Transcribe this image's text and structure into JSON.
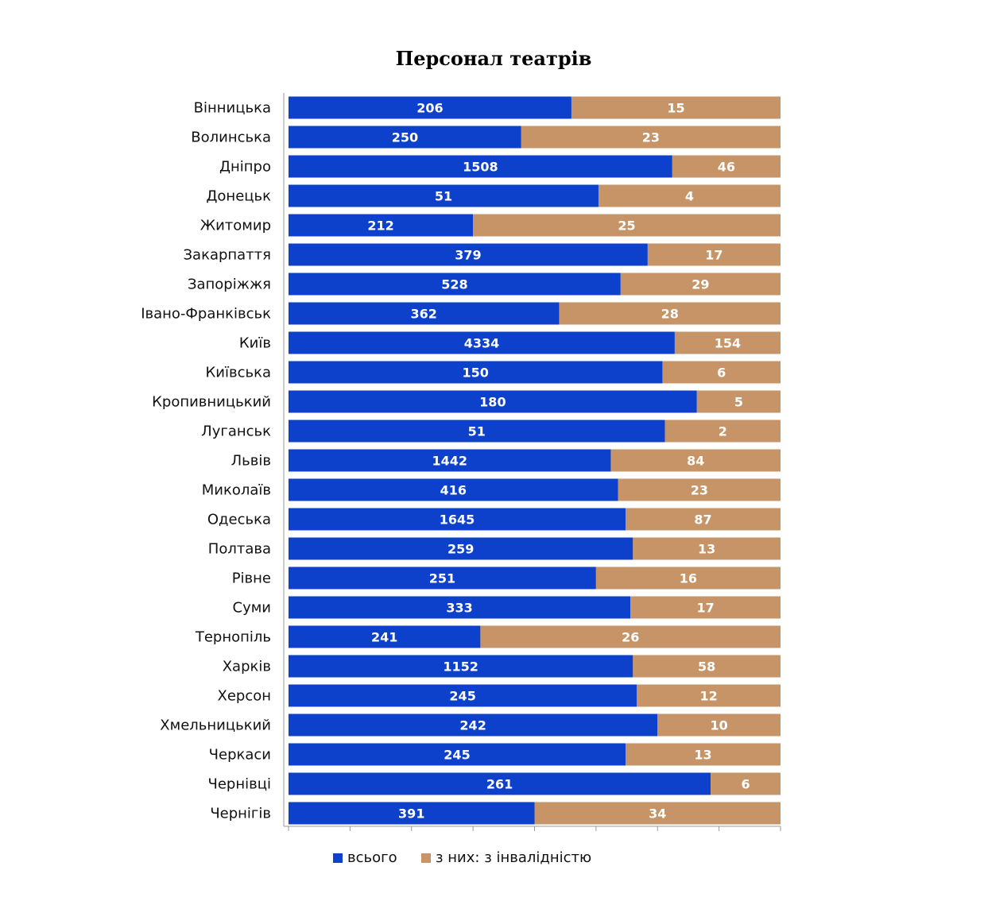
{
  "chart_data": {
    "type": "bar",
    "orientation": "horizontal",
    "stacked": "percent",
    "title": "Персонал театрів",
    "categories": [
      "Вінницька",
      "Волинська",
      "Дніпро",
      "Донецьк",
      "Житомир",
      "Закарпаття",
      "Запоріжжя",
      "Івано-Франківськ",
      "Київ",
      "Київська",
      "Кропивницький",
      "Луганськ",
      "Львів",
      "Миколаїв",
      "Одеська",
      "Полтава",
      "Рівне",
      "Суми",
      "Тернопіль",
      "Харків",
      "Херсон",
      "Хмельницький",
      "Черкаси",
      "Чернівці",
      "Чернігів"
    ],
    "series": [
      {
        "name": "всього",
        "color": "#0d41cc",
        "values": [
          206,
          250,
          1508,
          51,
          212,
          379,
          528,
          362,
          4334,
          150,
          180,
          51,
          1442,
          416,
          1645,
          259,
          251,
          333,
          241,
          1152,
          245,
          242,
          245,
          261,
          391
        ],
        "share": [
          57.5,
          47.3,
          78.0,
          63.0,
          37.5,
          73.0,
          67.5,
          55.0,
          78.5,
          76.0,
          83.0,
          76.5,
          65.5,
          67.0,
          68.5,
          70.0,
          62.5,
          69.5,
          39.0,
          70.0,
          70.8,
          75.0,
          68.5,
          85.8,
          50.0
        ]
      },
      {
        "name": "з них: з інвалідністю",
        "color": "#c69466",
        "values": [
          15,
          23,
          46,
          4,
          25,
          17,
          29,
          28,
          154,
          6,
          5,
          2,
          84,
          23,
          87,
          13,
          16,
          17,
          26,
          58,
          12,
          10,
          13,
          6,
          34
        ]
      }
    ],
    "xlim": [
      0,
      100
    ],
    "x_ticks": 8,
    "xlabel": "",
    "ylabel": "",
    "legend_position": "bottom",
    "grid": false
  }
}
